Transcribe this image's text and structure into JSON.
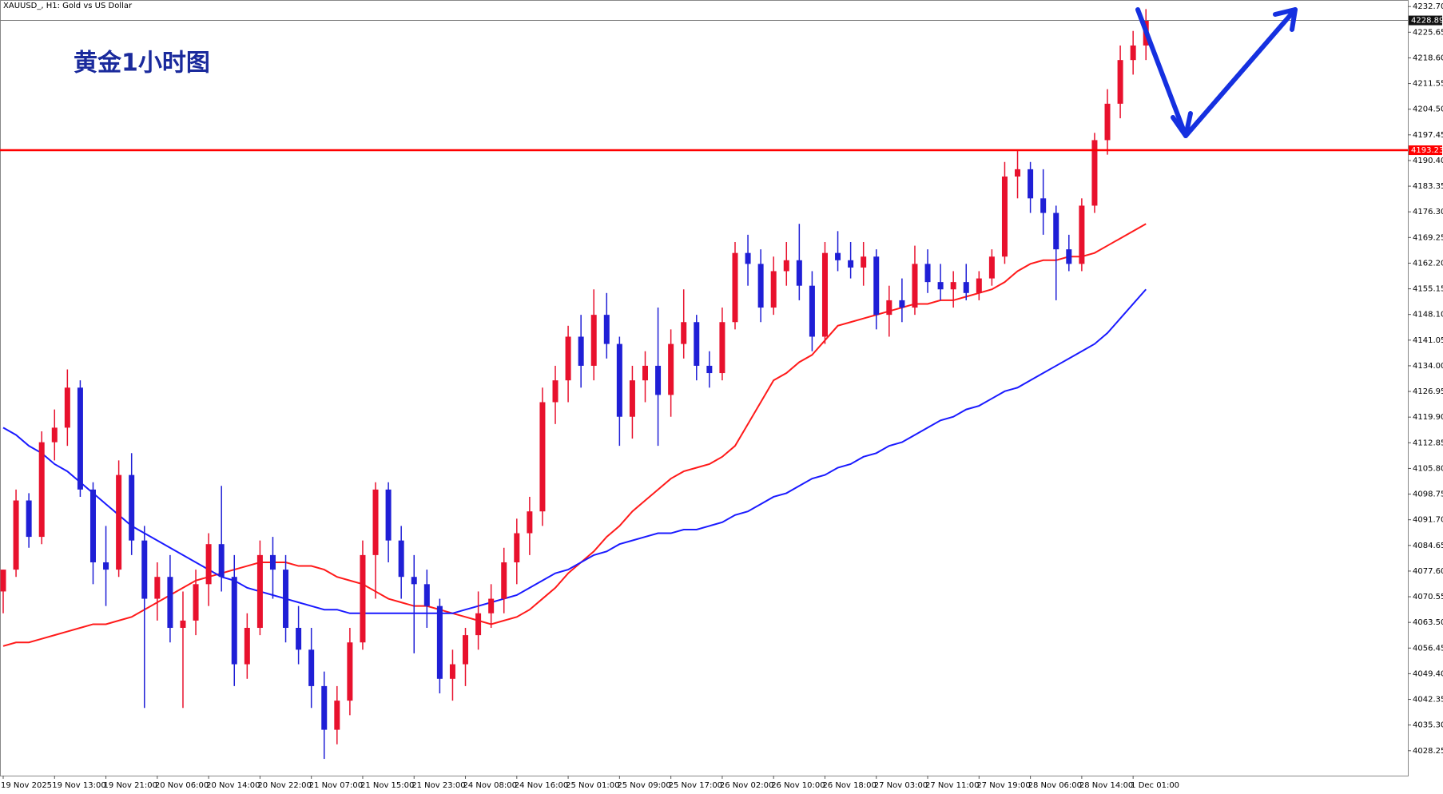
{
  "chart_data": {
    "type": "candlestick",
    "header": "XAUUSD_, H1:  Gold vs US Dollar",
    "title": "黄金1小时图",
    "up_color": "#e8112d",
    "down_color": "#1f1fd6",
    "categories": [
      "19 Nov 2025",
      null,
      null,
      null,
      "19 Nov 13:00",
      null,
      null,
      null,
      "19 Nov 21:00",
      null,
      null,
      null,
      "20 Nov 06:00",
      null,
      null,
      null,
      "20 Nov 14:00",
      null,
      null,
      null,
      "20 Nov 22:00",
      null,
      null,
      null,
      "21 Nov 07:00",
      null,
      null,
      null,
      "21 Nov 15:00",
      null,
      null,
      null,
      "21 Nov 23:00",
      null,
      null,
      null,
      "24 Nov 08:00",
      null,
      null,
      null,
      "24 Nov 16:00",
      null,
      null,
      null,
      "25 Nov 01:00",
      null,
      null,
      null,
      "25 Nov 09:00",
      null,
      null,
      null,
      "25 Nov 17:00",
      null,
      null,
      null,
      "26 Nov 02:00",
      null,
      null,
      null,
      "26 Nov 10:00",
      null,
      null,
      null,
      "26 Nov 18:00",
      null,
      null,
      null,
      "27 Nov 03:00",
      null,
      null,
      null,
      "27 Nov 11:00",
      null,
      null,
      null,
      "27 Nov 19:00",
      null,
      null,
      null,
      "28 Nov 06:00",
      null,
      null,
      null,
      "28 Nov 14:00",
      null,
      null,
      null,
      "1 Dec 01:00",
      null
    ],
    "ohlc": [
      [
        4072,
        4078,
        4066,
        4078
      ],
      [
        4078,
        4100,
        4076,
        4097
      ],
      [
        4097,
        4099,
        4084,
        4087
      ],
      [
        4087,
        4116,
        4085,
        4113
      ],
      [
        4113,
        4122,
        4108,
        4117
      ],
      [
        4117,
        4133,
        4112,
        4128
      ],
      [
        4128,
        4130,
        4098,
        4100
      ],
      [
        4100,
        4102,
        4074,
        4080
      ],
      [
        4080,
        4090,
        4068,
        4078
      ],
      [
        4078,
        4108,
        4076,
        4104
      ],
      [
        4104,
        4110,
        4082,
        4086
      ],
      [
        4086,
        4090,
        4040,
        4070
      ],
      [
        4070,
        4080,
        4064,
        4076
      ],
      [
        4076,
        4082,
        4058,
        4062
      ],
      [
        4062,
        4072,
        4040,
        4064
      ],
      [
        4064,
        4078,
        4060,
        4074
      ],
      [
        4074,
        4088,
        4068,
        4085
      ],
      [
        4085,
        4101,
        4072,
        4076
      ],
      [
        4076,
        4082,
        4046,
        4052
      ],
      [
        4052,
        4066,
        4048,
        4062
      ],
      [
        4062,
        4086,
        4060,
        4082
      ],
      [
        4082,
        4087,
        4070,
        4078
      ],
      [
        4078,
        4082,
        4058,
        4062
      ],
      [
        4062,
        4068,
        4052,
        4056
      ],
      [
        4056,
        4062,
        4040,
        4046
      ],
      [
        4046,
        4050,
        4026,
        4034
      ],
      [
        4034,
        4046,
        4030,
        4042
      ],
      [
        4042,
        4062,
        4038,
        4058
      ],
      [
        4058,
        4086,
        4056,
        4082
      ],
      [
        4082,
        4102,
        4070,
        4100
      ],
      [
        4100,
        4102,
        4080,
        4086
      ],
      [
        4086,
        4090,
        4070,
        4076
      ],
      [
        4076,
        4082,
        4055,
        4074
      ],
      [
        4074,
        4078,
        4062,
        4068
      ],
      [
        4068,
        4070,
        4044,
        4048
      ],
      [
        4048,
        4056,
        4042,
        4052
      ],
      [
        4052,
        4062,
        4046,
        4060
      ],
      [
        4060,
        4072,
        4056,
        4066
      ],
      [
        4066,
        4074,
        4062,
        4070
      ],
      [
        4070,
        4084,
        4066,
        4080
      ],
      [
        4080,
        4092,
        4074,
        4088
      ],
      [
        4088,
        4098,
        4082,
        4094
      ],
      [
        4094,
        4128,
        4090,
        4124
      ],
      [
        4124,
        4134,
        4118,
        4130
      ],
      [
        4130,
        4145,
        4124,
        4142
      ],
      [
        4142,
        4148,
        4128,
        4134
      ],
      [
        4134,
        4155,
        4130,
        4148
      ],
      [
        4148,
        4154,
        4136,
        4140
      ],
      [
        4140,
        4142,
        4112,
        4120
      ],
      [
        4120,
        4134,
        4114,
        4130
      ],
      [
        4130,
        4138,
        4124,
        4134
      ],
      [
        4134,
        4150,
        4112,
        4126
      ],
      [
        4126,
        4144,
        4120,
        4140
      ],
      [
        4140,
        4155,
        4136,
        4146
      ],
      [
        4146,
        4148,
        4130,
        4134
      ],
      [
        4134,
        4138,
        4128,
        4132
      ],
      [
        4132,
        4150,
        4130,
        4146
      ],
      [
        4146,
        4168,
        4144,
        4165
      ],
      [
        4165,
        4170,
        4156,
        4162
      ],
      [
        4162,
        4166,
        4146,
        4150
      ],
      [
        4150,
        4164,
        4148,
        4160
      ],
      [
        4160,
        4168,
        4156,
        4163
      ],
      [
        4163,
        4173,
        4152,
        4156
      ],
      [
        4156,
        4160,
        4138,
        4142
      ],
      [
        4142,
        4168,
        4140,
        4165
      ],
      [
        4165,
        4171,
        4160,
        4163
      ],
      [
        4163,
        4168,
        4158,
        4161
      ],
      [
        4161,
        4168,
        4156,
        4164
      ],
      [
        4164,
        4166,
        4144,
        4148
      ],
      [
        4148,
        4156,
        4142,
        4152
      ],
      [
        4152,
        4158,
        4146,
        4150
      ],
      [
        4150,
        4167,
        4148,
        4162
      ],
      [
        4162,
        4166,
        4154,
        4157
      ],
      [
        4157,
        4162,
        4152,
        4155
      ],
      [
        4155,
        4160,
        4150,
        4157
      ],
      [
        4157,
        4162,
        4152,
        4154
      ],
      [
        4154,
        4160,
        4152,
        4158
      ],
      [
        4158,
        4166,
        4156,
        4164
      ],
      [
        4164,
        4190,
        4162,
        4186
      ],
      [
        4186,
        4193,
        4180,
        4188
      ],
      [
        4188,
        4190,
        4176,
        4180
      ],
      [
        4180,
        4188,
        4170,
        4176
      ],
      [
        4176,
        4178,
        4152,
        4166
      ],
      [
        4166,
        4170,
        4160,
        4162
      ],
      [
        4162,
        4180,
        4160,
        4178
      ],
      [
        4178,
        4198,
        4176,
        4196
      ],
      [
        4196,
        4210,
        4192,
        4206
      ],
      [
        4206,
        4222,
        4202,
        4218
      ],
      [
        4218,
        4226,
        4214,
        4222
      ],
      [
        4222,
        4232,
        4218,
        4228.89
      ]
    ],
    "series": [
      {
        "color": "#ff1a1a",
        "values": [
          4057,
          4058,
          4058,
          4059,
          4060,
          4061,
          4062,
          4063,
          4063,
          4064,
          4065,
          4067,
          4069,
          4071,
          4073,
          4075,
          4076,
          4077,
          4078,
          4079,
          4080,
          4080,
          4080,
          4079,
          4079,
          4078,
          4076,
          4075,
          4074,
          4072,
          4070,
          4069,
          4068,
          4068,
          4067,
          4066,
          4065,
          4064,
          4063,
          4064,
          4065,
          4067,
          4070,
          4073,
          4077,
          4080,
          4083,
          4087,
          4090,
          4094,
          4097,
          4100,
          4103,
          4105,
          4106,
          4107,
          4109,
          4112,
          4118,
          4124,
          4130,
          4132,
          4135,
          4137,
          4141,
          4145,
          4146,
          4147,
          4148,
          4149,
          4150,
          4151,
          4151,
          4152,
          4152,
          4153,
          4154,
          4155,
          4157,
          4160,
          4162,
          4163,
          4163,
          4164,
          4164,
          4165,
          4167,
          4169,
          4171,
          4173
        ]
      },
      {
        "color": "#1a1aff",
        "values": [
          4117,
          4115,
          4112,
          4110,
          4107,
          4105,
          4102,
          4099,
          4096,
          4093,
          4090,
          4088,
          4086,
          4084,
          4082,
          4080,
          4078,
          4076,
          4075,
          4073,
          4072,
          4071,
          4070,
          4069,
          4068,
          4067,
          4067,
          4066,
          4066,
          4066,
          4066,
          4066,
          4066,
          4066,
          4066,
          4066,
          4067,
          4068,
          4069,
          4070,
          4071,
          4073,
          4075,
          4077,
          4078,
          4080,
          4082,
          4083,
          4085,
          4086,
          4087,
          4088,
          4088,
          4089,
          4089,
          4090,
          4091,
          4093,
          4094,
          4096,
          4098,
          4099,
          4101,
          4103,
          4104,
          4106,
          4107,
          4109,
          4110,
          4112,
          4113,
          4115,
          4117,
          4119,
          4120,
          4122,
          4123,
          4125,
          4127,
          4128,
          4130,
          4132,
          4134,
          4136,
          4138,
          4140,
          4143,
          4147,
          4151,
          4155
        ]
      }
    ],
    "hline": 4193.23,
    "hline_color": "#ff0000",
    "last_price": 4228.89,
    "ylim": [
      4021.4,
      4234.5
    ],
    "yticks": [
      {
        "value": 4232.7,
        "label": "4232.70"
      },
      4225.65,
      {
        "value": 4218.6,
        "label": "4218.60"
      },
      4211.55,
      {
        "value": 4204.5,
        "label": "4204.50"
      },
      4197.45,
      {
        "value": 4190.4,
        "label": "4190.40"
      },
      4183.35,
      {
        "value": 4176.3,
        "label": "4176.30"
      },
      4169.25,
      {
        "value": 4162.2,
        "label": "4162.20"
      },
      4155.15,
      {
        "value": 4148.1,
        "label": "4148.10"
      },
      4141.05,
      {
        "value": 4134,
        "label": "4134.00"
      },
      4126.95,
      {
        "value": 4119.9,
        "label": "4119.90"
      },
      4112.85,
      {
        "value": 4105.8,
        "label": "4105.80"
      },
      4098.75,
      {
        "value": 4091.7,
        "label": "4091.70"
      },
      4084.65,
      {
        "value": 4077.6,
        "label": "4077.60"
      },
      4070.55,
      {
        "value": 4063.5,
        "label": "4063.50"
      },
      4056.45,
      {
        "value": 4049.4,
        "label": "4049.40"
      },
      4042.35,
      {
        "value": 4035.3,
        "label": "4035.30"
      },
      4028.25
    ],
    "grid": false
  }
}
